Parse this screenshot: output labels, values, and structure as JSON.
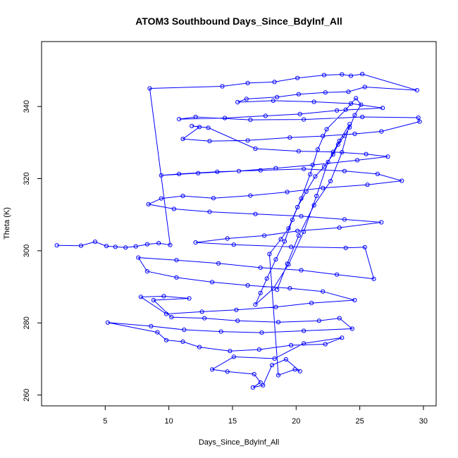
{
  "chart_data": {
    "type": "scatter",
    "title": "ATOM3 Southbound Days_Since_BdyInf_All",
    "xlabel": "Days_Since_BdyInf_All",
    "ylabel": "Theta (K)",
    "xlim": [
      0,
      31
    ],
    "ylim": [
      257,
      358
    ],
    "x_ticks": [
      5,
      10,
      15,
      20,
      25,
      30
    ],
    "y_ticks": [
      260,
      280,
      300,
      320,
      340
    ],
    "grid": false,
    "point_style": "open-circle",
    "connected_by_lines": true,
    "series_color": "#0000ff",
    "series": [
      {
        "name": "",
        "points": [
          [
            1.2,
            301.5
          ],
          [
            3.1,
            301.4
          ],
          [
            4.2,
            302.5
          ],
          [
            5.1,
            301.3
          ],
          [
            5.8,
            301.1
          ],
          [
            6.6,
            300.9
          ],
          [
            7.4,
            301.2
          ],
          [
            8.3,
            301.8
          ],
          [
            9.2,
            302.1
          ],
          [
            10.1,
            301.6
          ],
          [
            8.5,
            345.0
          ],
          [
            14.2,
            345.6
          ],
          [
            16.2,
            346.5
          ],
          [
            18.3,
            346.8
          ],
          [
            20.1,
            347.9
          ],
          [
            22.2,
            348.7
          ],
          [
            23.6,
            348.9
          ],
          [
            24.3,
            348.5
          ],
          [
            25.2,
            349.0
          ],
          [
            29.5,
            344.5
          ],
          [
            25.4,
            345.4
          ],
          [
            24.1,
            344.1
          ],
          [
            22.3,
            343.9
          ],
          [
            20.2,
            343.4
          ],
          [
            18.5,
            342.6
          ],
          [
            16.1,
            342.1
          ],
          [
            15.4,
            341.2
          ],
          [
            18.2,
            341.6
          ],
          [
            21.4,
            341.3
          ],
          [
            24.3,
            340.8
          ],
          [
            26.8,
            339.6
          ],
          [
            23.2,
            338.9
          ],
          [
            20.3,
            337.9
          ],
          [
            17.6,
            337.4
          ],
          [
            14.4,
            336.8
          ],
          [
            10.8,
            336.5
          ],
          [
            12.1,
            337.1
          ],
          [
            16.4,
            336.3
          ],
          [
            20.6,
            336.4
          ],
          [
            25.2,
            337.1
          ],
          [
            29.6,
            336.9
          ],
          [
            29.7,
            335.8
          ],
          [
            26.7,
            333.1
          ],
          [
            24.6,
            332.4
          ],
          [
            22.1,
            331.8
          ],
          [
            19.5,
            331.4
          ],
          [
            16.2,
            330.6
          ],
          [
            13.2,
            330.4
          ],
          [
            11.1,
            331.0
          ],
          [
            12.4,
            334.3
          ],
          [
            11.8,
            334.6
          ],
          [
            13.1,
            334.1
          ],
          [
            16.8,
            328.3
          ],
          [
            20.2,
            327.6
          ],
          [
            22.9,
            327.4
          ],
          [
            25.5,
            326.8
          ],
          [
            27.2,
            326.1
          ],
          [
            24.8,
            325.1
          ],
          [
            21.3,
            323.8
          ],
          [
            18.4,
            322.9
          ],
          [
            15.5,
            322.1
          ],
          [
            12.3,
            321.5
          ],
          [
            9.4,
            320.9
          ],
          [
            10.8,
            321.3
          ],
          [
            13.8,
            321.9
          ],
          [
            17.2,
            322.3
          ],
          [
            20.6,
            322.7
          ],
          [
            23.8,
            322.1
          ],
          [
            26.4,
            321.3
          ],
          [
            28.3,
            319.4
          ],
          [
            25.6,
            318.3
          ],
          [
            22.1,
            317.4
          ],
          [
            19.3,
            316.3
          ],
          [
            16.4,
            315.3
          ],
          [
            13.5,
            314.6
          ],
          [
            11.1,
            315.2
          ],
          [
            9.4,
            314.5
          ],
          [
            8.4,
            312.9
          ],
          [
            10.4,
            311.6
          ],
          [
            13.2,
            310.8
          ],
          [
            16.8,
            310.2
          ],
          [
            20.4,
            309.6
          ],
          [
            23.8,
            308.7
          ],
          [
            26.7,
            307.9
          ],
          [
            23.4,
            306.4
          ],
          [
            20.1,
            305.5
          ],
          [
            17.5,
            304.2
          ],
          [
            14.6,
            303.4
          ],
          [
            12.1,
            302.3
          ],
          [
            15.1,
            301.7
          ],
          [
            19.6,
            301.1
          ],
          [
            23.9,
            300.8
          ],
          [
            25.4,
            301.0
          ],
          [
            26.1,
            292.2
          ],
          [
            23.2,
            293.4
          ],
          [
            20.4,
            294.6
          ],
          [
            17.2,
            295.3
          ],
          [
            13.9,
            296.5
          ],
          [
            10.6,
            297.4
          ],
          [
            7.6,
            298.1
          ],
          [
            8.3,
            294.3
          ],
          [
            10.6,
            292.6
          ],
          [
            13.4,
            291.3
          ],
          [
            16.2,
            290.4
          ],
          [
            19.5,
            289.6
          ],
          [
            22.1,
            288.7
          ],
          [
            24.6,
            286.3
          ],
          [
            21.2,
            285.5
          ],
          [
            18.4,
            284.4
          ],
          [
            15.3,
            283.6
          ],
          [
            12.6,
            283.1
          ],
          [
            9.8,
            282.5
          ],
          [
            7.8,
            287.2
          ],
          [
            9.6,
            287.4
          ],
          [
            11.6,
            286.8
          ],
          [
            8.8,
            286.3
          ],
          [
            10.2,
            281.6
          ],
          [
            12.8,
            281.3
          ],
          [
            15.4,
            280.6
          ],
          [
            18.6,
            280.2
          ],
          [
            21.8,
            280.6
          ],
          [
            23.4,
            281.3
          ],
          [
            24.4,
            278.4
          ],
          [
            20.6,
            277.8
          ],
          [
            17.3,
            277.3
          ],
          [
            14.1,
            277.6
          ],
          [
            11.2,
            278.1
          ],
          [
            8.6,
            279.1
          ],
          [
            5.2,
            280.1
          ],
          [
            9.1,
            277.4
          ],
          [
            9.8,
            275.2
          ],
          [
            11.1,
            274.8
          ],
          [
            12.4,
            273.3
          ],
          [
            14.8,
            272.2
          ],
          [
            17.1,
            272.6
          ],
          [
            19.6,
            273.8
          ],
          [
            22.3,
            274.1
          ],
          [
            23.6,
            275.9
          ],
          [
            20.6,
            274.3
          ],
          [
            18.3,
            270.1
          ],
          [
            15.1,
            270.6
          ],
          [
            13.4,
            267.1
          ],
          [
            14.6,
            266.5
          ],
          [
            16.7,
            265.8
          ],
          [
            17.2,
            263.5
          ],
          [
            16.6,
            262.1
          ],
          [
            17.4,
            262.7
          ],
          [
            18.1,
            268.3
          ],
          [
            19.2,
            269.9
          ],
          [
            20.3,
            266.6
          ],
          [
            19.9,
            267.1
          ],
          [
            18.6,
            265.5
          ],
          [
            17.9,
            299.1
          ],
          [
            18.8,
            303.2
          ],
          [
            19.4,
            306.2
          ],
          [
            20.1,
            312.1
          ],
          [
            20.8,
            316.4
          ],
          [
            21.5,
            320.6
          ],
          [
            22.2,
            323.3
          ],
          [
            22.9,
            326.7
          ],
          [
            23.3,
            329.5
          ],
          [
            23.8,
            331.9
          ],
          [
            24.2,
            334.2
          ],
          [
            24.6,
            337.6
          ],
          [
            25.1,
            340.5
          ],
          [
            24.7,
            342.3
          ],
          [
            23.9,
            339.1
          ],
          [
            22.4,
            333.7
          ],
          [
            21.7,
            328.1
          ],
          [
            21.1,
            321.2
          ],
          [
            20.4,
            314.5
          ],
          [
            19.7,
            308.6
          ],
          [
            19.1,
            302.6
          ],
          [
            18.4,
            297.6
          ],
          [
            17.7,
            292.3
          ],
          [
            17.2,
            288.3
          ],
          [
            16.8,
            285.1
          ],
          [
            18.2,
            289.5
          ],
          [
            19.4,
            296.2
          ],
          [
            20.6,
            305.3
          ],
          [
            21.6,
            315.2
          ],
          [
            22.5,
            324.6
          ],
          [
            23.4,
            330.5
          ],
          [
            24.2,
            335.1
          ],
          [
            23.6,
            327.3
          ],
          [
            22.7,
            319.3
          ],
          [
            21.4,
            312.6
          ],
          [
            20.2,
            304.2
          ],
          [
            19.3,
            296.4
          ],
          [
            18.5,
            289.2
          ]
        ]
      }
    ]
  }
}
